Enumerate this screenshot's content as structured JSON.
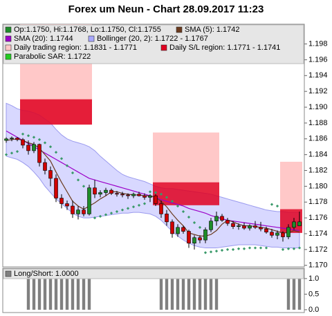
{
  "chart_data": [
    {
      "type": "candlestick",
      "title": "Forex um Neun - Chart 28.09.2017 11:23",
      "ylim": [
        1.1698,
        1.2005
      ],
      "yticks": [
        {
          "value": 1.17,
          "label": "1.170"
        },
        {
          "value": 1.172,
          "label": "1.172"
        },
        {
          "value": 1.174,
          "label": "1.174"
        },
        {
          "value": 1.176,
          "label": "1.176"
        },
        {
          "value": 1.178,
          "label": "1.178"
        },
        {
          "value": 1.18,
          "label": "1.180"
        },
        {
          "value": 1.182,
          "label": "1.182"
        },
        {
          "value": 1.184,
          "label": "1.184"
        },
        {
          "value": 1.186,
          "label": "1.186"
        },
        {
          "value": 1.188,
          "label": "1.188"
        },
        {
          "value": 1.19,
          "label": "1.190"
        },
        {
          "value": 1.192,
          "label": "1.192"
        },
        {
          "value": 1.194,
          "label": "1.194"
        },
        {
          "value": 1.196,
          "label": "1.196"
        },
        {
          "value": 1.198,
          "label": "1.198"
        }
      ],
      "up_color": "#1e8c2a",
      "down_color": "#d00000",
      "legend": [
        {
          "label": "Op:1.1750, Hi:1.1768, Lo:1.1750, Cl:1.1755",
          "color": "#1e8c2a"
        },
        {
          "label": "SMA (5): 1.1742",
          "color": "#6b3a1e"
        },
        {
          "label": "SMA (20): 1.1744",
          "color": "#9b00c8"
        },
        {
          "label": "Bollinger (20, 2): 1.1722 - 1.1767",
          "color": "#a8a8ff"
        },
        {
          "label": "Daily trading region: 1.1831 - 1.1771",
          "color": "#ffc8c8"
        },
        {
          "label": "Daily S/L region: 1.1771 - 1.1741",
          "color": "#e00020"
        },
        {
          "label": "Parabolic SAR: 1.1722",
          "color": "#22cc22"
        }
      ],
      "open": [
        1.1858,
        1.186,
        1.1861,
        1.1859,
        1.1852,
        1.1845,
        1.1853,
        1.183,
        1.182,
        1.181,
        1.1785,
        1.1778,
        1.1775,
        1.1765,
        1.177,
        1.1765,
        1.1798,
        1.179,
        1.1792,
        1.1795,
        1.1791,
        1.179,
        1.1789,
        1.1788,
        1.179,
        1.1788,
        1.1786,
        1.1788,
        1.1778,
        1.1765,
        1.1755,
        1.174,
        1.1748,
        1.1743,
        1.1728,
        1.1735,
        1.1732,
        1.1745,
        1.1756,
        1.1762,
        1.1757,
        1.1753,
        1.1749,
        1.175,
        1.1747,
        1.175,
        1.1748,
        1.1746,
        1.1742,
        1.1738,
        1.1741,
        1.1736,
        1.1748,
        1.175
      ],
      "high": [
        1.1862,
        1.1863,
        1.1862,
        1.1861,
        1.1858,
        1.1856,
        1.1854,
        1.1835,
        1.1825,
        1.1815,
        1.179,
        1.1782,
        1.1782,
        1.1775,
        1.1775,
        1.1802,
        1.1808,
        1.1795,
        1.1798,
        1.1797,
        1.1794,
        1.1793,
        1.1791,
        1.1792,
        1.1793,
        1.1791,
        1.179,
        1.179,
        1.1782,
        1.177,
        1.1758,
        1.1752,
        1.175,
        1.1745,
        1.1738,
        1.1738,
        1.1748,
        1.176,
        1.1768,
        1.1765,
        1.176,
        1.1756,
        1.1753,
        1.1754,
        1.1752,
        1.1756,
        1.1755,
        1.1749,
        1.1746,
        1.1744,
        1.1743,
        1.1752,
        1.176,
        1.1768
      ],
      "low": [
        1.1855,
        1.1857,
        1.1857,
        1.1848,
        1.184,
        1.1842,
        1.1825,
        1.1815,
        1.18,
        1.178,
        1.1772,
        1.177,
        1.176,
        1.1758,
        1.1762,
        1.1763,
        1.1785,
        1.1786,
        1.1788,
        1.1789,
        1.1787,
        1.1786,
        1.1784,
        1.1785,
        1.1787,
        1.1783,
        1.178,
        1.1775,
        1.176,
        1.175,
        1.1735,
        1.1736,
        1.174,
        1.1722,
        1.172,
        1.1728,
        1.1728,
        1.1742,
        1.175,
        1.1755,
        1.175,
        1.1746,
        1.1745,
        1.1745,
        1.1744,
        1.1746,
        1.1743,
        1.174,
        1.1735,
        1.1733,
        1.173,
        1.1733,
        1.1745,
        1.175
      ],
      "close": [
        1.186,
        1.1861,
        1.1859,
        1.1852,
        1.1845,
        1.1853,
        1.183,
        1.182,
        1.181,
        1.1785,
        1.1778,
        1.1775,
        1.1765,
        1.177,
        1.1765,
        1.1798,
        1.179,
        1.1792,
        1.1795,
        1.1791,
        1.179,
        1.1789,
        1.1788,
        1.179,
        1.1788,
        1.1786,
        1.1788,
        1.1778,
        1.1765,
        1.1755,
        1.174,
        1.1748,
        1.1743,
        1.1728,
        1.1735,
        1.1732,
        1.1745,
        1.1756,
        1.1762,
        1.1757,
        1.1753,
        1.1749,
        1.175,
        1.1747,
        1.175,
        1.1748,
        1.1746,
        1.1742,
        1.1738,
        1.1741,
        1.1736,
        1.1748,
        1.1755,
        1.1755
      ],
      "sma5": [
        1.1858,
        1.1859,
        1.186,
        1.1858,
        1.1855,
        1.1853,
        1.1848,
        1.184,
        1.1832,
        1.1818,
        1.1805,
        1.1793,
        1.1781,
        1.1775,
        1.1771,
        1.1775,
        1.1779,
        1.1784,
        1.1788,
        1.1793,
        1.1793,
        1.1791,
        1.179,
        1.1789,
        1.1789,
        1.1788,
        1.1788,
        1.1786,
        1.1781,
        1.1774,
        1.1765,
        1.1757,
        1.175,
        1.1741,
        1.1739,
        1.1737,
        1.1737,
        1.1739,
        1.1744,
        1.1752,
        1.1757,
        1.1755,
        1.1752,
        1.175,
        1.175,
        1.1749,
        1.1748,
        1.1747,
        1.1745,
        1.1743,
        1.1741,
        1.1741,
        1.1744,
        1.1742
      ],
      "sma20": [
        1.187,
        1.1866,
        1.1862,
        1.1858,
        1.1854,
        1.185,
        1.1846,
        1.1842,
        1.1838,
        1.1834,
        1.183,
        1.1826,
        1.1822,
        1.1818,
        1.1814,
        1.181,
        1.1808,
        1.1806,
        1.1804,
        1.1802,
        1.18,
        1.1798,
        1.1796,
        1.1794,
        1.1792,
        1.179,
        1.1788,
        1.1786,
        1.1783,
        1.1781,
        1.1779,
        1.1777,
        1.1775,
        1.1772,
        1.177,
        1.1768,
        1.1766,
        1.1763,
        1.1761,
        1.1759,
        1.1757,
        1.1756,
        1.1755,
        1.1754,
        1.1753,
        1.1752,
        1.1751,
        1.175,
        1.1749,
        1.1748,
        1.1747,
        1.1746,
        1.1745,
        1.1744
      ],
      "bb_upper": [
        1.1905,
        1.1902,
        1.1898,
        1.1896,
        1.1895,
        1.1893,
        1.189,
        1.1885,
        1.188,
        1.1872,
        1.1865,
        1.186,
        1.1857,
        1.1855,
        1.1853,
        1.185,
        1.1845,
        1.1838,
        1.1832,
        1.1826,
        1.182,
        1.1815,
        1.1812,
        1.181,
        1.1808,
        1.1806,
        1.1803,
        1.18,
        1.1798,
        1.1797,
        1.1797,
        1.1796,
        1.1795,
        1.1794,
        1.1793,
        1.1792,
        1.1791,
        1.179,
        1.1788,
        1.1786,
        1.1784,
        1.1782,
        1.178,
        1.1778,
        1.1776,
        1.1774,
        1.1772,
        1.177,
        1.1769,
        1.1768,
        1.1768,
        1.1767,
        1.1767,
        1.1767
      ],
      "bb_lower": [
        1.1838,
        1.1836,
        1.1834,
        1.183,
        1.1825,
        1.1818,
        1.181,
        1.18,
        1.1792,
        1.1784,
        1.1778,
        1.1772,
        1.1766,
        1.1762,
        1.176,
        1.176,
        1.1761,
        1.1762,
        1.1763,
        1.1764,
        1.1765,
        1.1766,
        1.1766,
        1.1767,
        1.1767,
        1.1766,
        1.1765,
        1.1762,
        1.1757,
        1.175,
        1.1743,
        1.1737,
        1.1732,
        1.1728,
        1.1725,
        1.1723,
        1.1722,
        1.1722,
        1.1722,
        1.1723,
        1.1724,
        1.1725,
        1.1726,
        1.1726,
        1.1726,
        1.1726,
        1.1725,
        1.1724,
        1.1723,
        1.1723,
        1.1722,
        1.1722,
        1.1722,
        1.1722
      ],
      "sar": [
        1.184,
        1.1842,
        1.1844,
        1.1866,
        1.1864,
        1.1862,
        1.1859,
        1.1855,
        1.185,
        1.1843,
        1.1835,
        1.1826,
        1.1817,
        1.1808,
        1.18,
        1.1792,
        1.176,
        1.1762,
        1.1764,
        1.1766,
        1.1768,
        1.177,
        1.1772,
        1.1774,
        1.1776,
        1.1778,
        1.1793,
        1.1792,
        1.179,
        1.1786,
        1.1781,
        1.1775,
        1.1768,
        1.1761,
        1.1754,
        1.1748,
        1.1716,
        1.1717,
        1.1718,
        1.1719,
        1.172,
        1.172,
        1.1721,
        1.1721,
        1.1722,
        1.1722,
        1.1722,
        1.1722,
        1.1777,
        1.1775,
        1.172,
        1.1721,
        1.1721,
        1.1722
      ],
      "trading_regions": [
        {
          "from": 3,
          "to": 15,
          "high": 1.2005,
          "low": 1.1878
        },
        {
          "from": 27,
          "to": 38,
          "high": 1.1868,
          "low": 1.1805
        },
        {
          "from": 50,
          "to": 53,
          "high": 1.1831,
          "low": 1.1771
        }
      ],
      "sl_regions": [
        {
          "from": 3,
          "to": 15,
          "high": 1.191,
          "low": 1.1878
        },
        {
          "from": 27,
          "to": 38,
          "high": 1.1805,
          "low": 1.1776
        },
        {
          "from": 50,
          "to": 53,
          "high": 1.1771,
          "low": 1.1741
        }
      ]
    },
    {
      "type": "bar",
      "legend": [
        {
          "label": "Long/Short: 1.0000",
          "color": "#808080"
        }
      ],
      "color": "#808080",
      "ylim": [
        -0.09,
        1.33
      ],
      "yticks": [
        {
          "value": 0,
          "label": "0.0"
        },
        {
          "value": 0.5,
          "label": "0.5"
        },
        {
          "value": 1,
          "label": "1.0"
        }
      ],
      "values": [
        0,
        0,
        0,
        0,
        1,
        1,
        1,
        1,
        1,
        1,
        1,
        1,
        1,
        1,
        1,
        1,
        0,
        0,
        0,
        0,
        0,
        0,
        0,
        0,
        0,
        0,
        0,
        0,
        1,
        1,
        1,
        1,
        1,
        1,
        1,
        1,
        1,
        1,
        1,
        0,
        0,
        0,
        0,
        0,
        0,
        0,
        0,
        0,
        0,
        0,
        0,
        1,
        1,
        1
      ]
    }
  ]
}
